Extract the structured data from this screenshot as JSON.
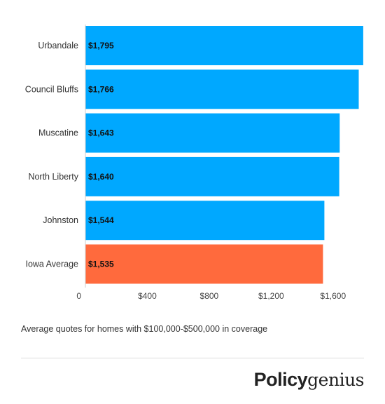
{
  "chart_data": {
    "type": "bar",
    "orientation": "horizontal",
    "categories": [
      "Urbandale",
      "Council Bluffs",
      "Muscatine",
      "North Liberty",
      "Johnston",
      "Iowa Average"
    ],
    "values": [
      1795,
      1766,
      1643,
      1640,
      1544,
      1535
    ],
    "value_labels": [
      "$1,795",
      "$1,766",
      "$1,643",
      "$1,640",
      "$1,544",
      "$1,535"
    ],
    "colors": [
      "#00A8FF",
      "#00A8FF",
      "#00A8FF",
      "#00A8FF",
      "#00A8FF",
      "#FF6A3D"
    ],
    "xlim": [
      0,
      1800
    ],
    "x_ticks": [
      0,
      400,
      800,
      1200,
      1600
    ],
    "x_tick_labels": [
      "0",
      "$400",
      "$800",
      "$1,200",
      "$1,600"
    ],
    "grid": false
  },
  "caption": "Average quotes for homes with $100,000-$500,000 in coverage",
  "logo": {
    "strong": "Policy",
    "light": "genius"
  }
}
